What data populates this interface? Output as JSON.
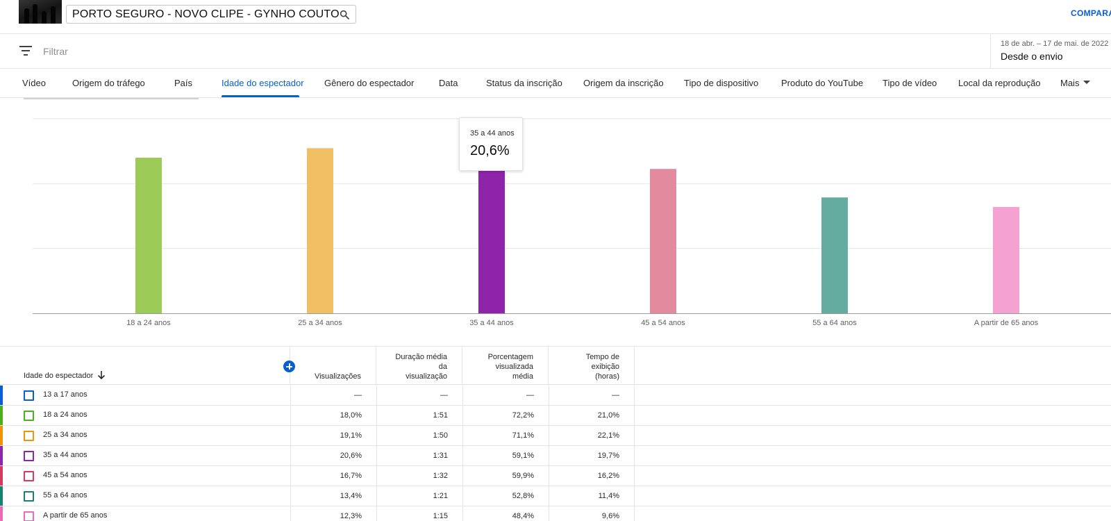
{
  "header": {
    "video_title": "PORTO SEGURO - NOVO CLIPE - GYNHO COUTO",
    "compare_label": "COMPARAR",
    "search_icon": "search-icon",
    "thumbnail": "video-thumbnail"
  },
  "filter": {
    "placeholder": "Filtrar",
    "icon": "filter-icon",
    "date_range": "18 de abr. – 17 de mai. de 2022",
    "period_label": "Desde o envio"
  },
  "tabs": [
    {
      "label": "Vídeo"
    },
    {
      "label": "Origem do tráfego"
    },
    {
      "label": "País"
    },
    {
      "label": "Idade do espectador",
      "active": true
    },
    {
      "label": "Gênero do espectador"
    },
    {
      "label": "Data"
    },
    {
      "label": "Status da inscrição"
    },
    {
      "label": "Origem da inscrição"
    },
    {
      "label": "Tipo de dispositivo"
    },
    {
      "label": "Produto do YouTube"
    },
    {
      "label": "Tipo de vídeo"
    },
    {
      "label": "Local da reprodução"
    },
    {
      "label": "Mais"
    }
  ],
  "tooltip": {
    "label": "35 a 44 anos",
    "value": "20,6%"
  },
  "chart_data": {
    "type": "bar",
    "categories": [
      "18 a 24 anos",
      "25 a 34 anos",
      "35 a 44 anos",
      "45 a 54 anos",
      "55 a 64 anos",
      "A partir de 65 anos"
    ],
    "values": [
      18.0,
      19.1,
      20.6,
      16.7,
      13.4,
      12.3
    ],
    "colors": [
      "#9ccc57",
      "#f0be63",
      "#8e24aa",
      "#e48a9e",
      "#64aba0",
      "#f4a2d1"
    ],
    "ylim": [
      0,
      22.5
    ],
    "grid": true,
    "xlabel": "",
    "ylabel": ""
  },
  "table": {
    "columns": [
      {
        "label": "Idade do espectador",
        "sort": "descending"
      },
      {
        "label": "Visualizações"
      },
      {
        "lines": [
          "Duração média",
          "da",
          "visualização"
        ]
      },
      {
        "lines": [
          "Porcentagem",
          "visualizada",
          "média"
        ]
      },
      {
        "lines": [
          "Tempo de",
          "exibição",
          "(horas)"
        ]
      }
    ],
    "rows": [
      {
        "name": "13 a 17 anos",
        "views": "—",
        "avg_duration": "—",
        "avg_pct": "—",
        "watch_time": "—",
        "color": "#065fd4"
      },
      {
        "name": "18 a 24 anos",
        "views": "18,0%",
        "avg_duration": "1:51",
        "avg_pct": "72,2%",
        "watch_time": "21,0%",
        "color": "#4caf1e"
      },
      {
        "name": "25 a 34 anos",
        "views": "19,1%",
        "avg_duration": "1:50",
        "avg_pct": "71,1%",
        "watch_time": "22,1%",
        "color": "#f0930a"
      },
      {
        "name": "35 a 44 anos",
        "views": "20,6%",
        "avg_duration": "1:31",
        "avg_pct": "59,1%",
        "watch_time": "19,7%",
        "color": "#8e24aa"
      },
      {
        "name": "45 a 54 anos",
        "views": "16,7%",
        "avg_duration": "1:32",
        "avg_pct": "59,9%",
        "watch_time": "16,2%",
        "color": "#d63a5c"
      },
      {
        "name": "55 a 64 anos",
        "views": "13,4%",
        "avg_duration": "1:21",
        "avg_pct": "52,8%",
        "watch_time": "11,4%",
        "color": "#16826f"
      },
      {
        "name": "A partir de 65 anos",
        "views": "12,3%",
        "avg_duration": "1:15",
        "avg_pct": "48,4%",
        "watch_time": "9,6%",
        "color": "#ec6bb2"
      }
    ]
  }
}
